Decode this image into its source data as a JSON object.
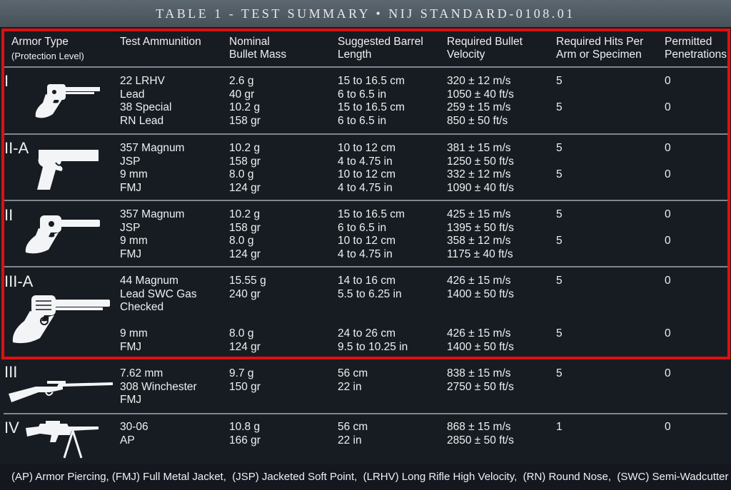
{
  "title": "TABLE 1 - TEST SUMMARY • NIJ STANDARD-0108.01",
  "headers": {
    "armor_type": "Armor Type",
    "armor_type_sub": "(Protection Level)",
    "ammo": "Test Ammunition",
    "mass_1": "Nominal",
    "mass_2": "Bullet Mass",
    "barrel_1": "Suggested Barrel",
    "barrel_2": "Length",
    "velocity_1": "Required Bullet",
    "velocity_2": "Velocity",
    "hits_1": "Required Hits Per",
    "hits_2": "Arm or Specimen",
    "pen_1": "Permitted",
    "pen_2": "Penetrations"
  },
  "rows": [
    {
      "level": "I",
      "icon": "revolver-icon",
      "ammo": "22 LRHV\nLead\n38 Special\nRN Lead",
      "mass": "2.6 g\n40 gr\n10.2 g\n158 gr",
      "barrel": "15 to 16.5 cm\n6 to 6.5 in\n15 to 16.5 cm\n6 to 6.5 in",
      "velocity": "320 ± 12 m/s\n1050 ± 40 ft/s\n259 ± 15 m/s\n850 ± 50 ft/s",
      "hits": "5\n\n5",
      "pen": "0\n\n0"
    },
    {
      "level": "II-A",
      "icon": "pistol-icon",
      "ammo": "357 Magnum\nJSP\n9 mm\nFMJ",
      "mass": "10.2 g\n158 gr\n8.0 g\n124 gr",
      "barrel": "10 to 12 cm\n4 to 4.75 in\n10 to 12 cm\n4 to 4.75 in",
      "velocity": "381 ± 15 m/s\n1250 ± 50 ft/s\n332 ± 12 m/s\n1090 ± 40 ft/s",
      "hits": "5\n\n5",
      "pen": "0\n\n0"
    },
    {
      "level": "II",
      "icon": "revolver-icon",
      "ammo": "357 Magnum\nJSP\n9 mm\nFMJ",
      "mass": "10.2 g\n158 gr\n8.0 g\n124 gr",
      "barrel": "15 to 16.5 cm\n6 to 6.5 in\n10 to 12 cm\n4 to 4.75 in",
      "velocity": "425 ± 15 m/s\n1395 ± 50 ft/s\n358 ± 12 m/s\n1175 ± 40 ft/s",
      "hits": "5\n\n5",
      "pen": "0\n\n0"
    },
    {
      "level": "III-A",
      "icon": "magnum-revolver-icon",
      "ammo": "44 Magnum\nLead SWC Gas\nChecked\n\n9 mm\nFMJ",
      "mass": "15.55 g\n240 gr\n\n\n8.0 g\n124 gr",
      "barrel": "14 to 16 cm\n5.5 to 6.25 in\n\n\n24 to 26 cm\n9.5 to 10.25 in",
      "velocity": "426 ± 15 m/s\n1400 ± 50 ft/s\n\n\n426 ± 15 m/s\n1400 ± 50 ft/s",
      "hits": "5\n\n\n\n5",
      "pen": "0\n\n\n\n0"
    },
    {
      "level": "III",
      "icon": "rifle-icon",
      "ammo": "7.62 mm\n308 Winchester\nFMJ",
      "mass": "9.7 g\n150 gr",
      "barrel": "56 cm\n22 in",
      "velocity": "838 ± 15 m/s\n2750 ± 50 ft/s",
      "hits": "5",
      "pen": "0"
    },
    {
      "level": "IV",
      "icon": "assault-rifle-icon",
      "ammo": "30-06\nAP",
      "mass": "10.8 g\n166 gr",
      "barrel": "56 cm\n22 in",
      "velocity": "868 ± 15 m/s\n2850 ± 50 ft/s",
      "hits": "1",
      "pen": "0"
    }
  ],
  "footnote": "(AP) Armor Piercing, (FMJ) Full Metal Jacket,  (JSP) Jacketed Soft Point,  (LRHV) Long Rifle High Velocity,  (RN) Round Nose,  (SWC) Semi-Wadcutter",
  "colors": {
    "highlight": "#e01010",
    "background": "#171c22",
    "separator": "#7d8791"
  }
}
